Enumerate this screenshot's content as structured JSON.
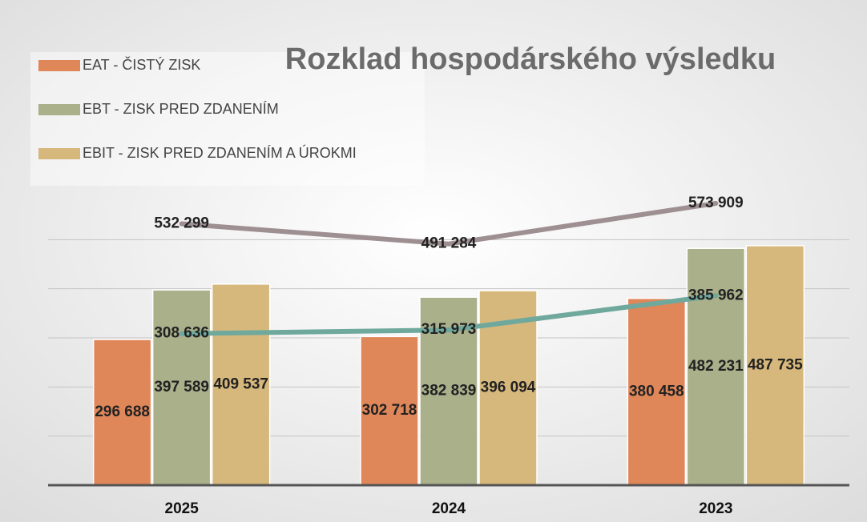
{
  "chart_data": {
    "type": "bar",
    "title": "Rozklad hospodárského výsledku",
    "categories": [
      "2025",
      "2024",
      "2023"
    ],
    "series": [
      {
        "name": "EAT - ČISTÝ ZISK",
        "color": "#e0875a",
        "values": [
          296688,
          302718,
          380458
        ],
        "value_labels": [
          "296 688",
          "302 718",
          "380 458"
        ]
      },
      {
        "name": "EBT - ZISK PRED ZDANENÍM",
        "color": "#a9b08a",
        "values": [
          397589,
          382839,
          482231
        ],
        "value_labels": [
          "397 589",
          "382 839",
          "482 231"
        ]
      },
      {
        "name": "EBIT - ZISK PRED ZDANENÍM A ÚROKMI",
        "color": "#d6b87c",
        "values": [
          409537,
          396094,
          487735
        ],
        "value_labels": [
          "409 537",
          "396 094",
          "487 735"
        ]
      },
      {
        "type": "line",
        "color": "#9e8f92",
        "values": [
          532299,
          491284,
          573909
        ],
        "value_labels": [
          "532 299",
          "491 284",
          "573 909"
        ]
      },
      {
        "type": "line",
        "color": "#6fa89c",
        "values": [
          308636,
          315973,
          385962
        ],
        "value_labels": [
          "308 636",
          "315 973",
          "385 962"
        ]
      }
    ],
    "ylim": [
      0,
      600000
    ],
    "yticks": [
      0,
      100000,
      200000,
      300000,
      400000,
      500000
    ],
    "grid": true
  }
}
